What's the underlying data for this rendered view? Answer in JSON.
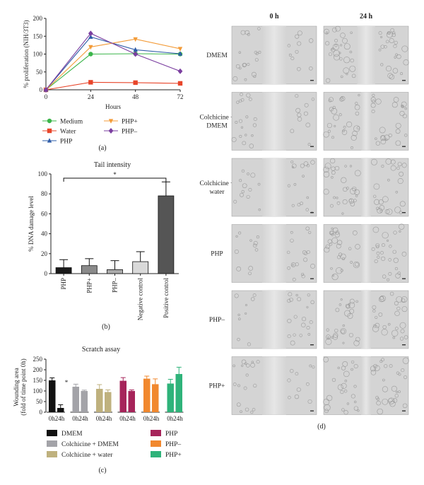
{
  "panel_a": {
    "label": "(a)",
    "chart_data": {
      "type": "line",
      "x": [
        0,
        24,
        48,
        72
      ],
      "xlabel": "Hours",
      "ylabel": "% proliferation (NIH/3T3)",
      "xlim": [
        0,
        72
      ],
      "ylim": [
        0,
        200
      ],
      "xticks": [
        "0",
        "24",
        "48",
        "72"
      ],
      "yticks": [
        "0",
        "50",
        "100",
        "150",
        "200"
      ],
      "legend_position": "bottom",
      "series": [
        {
          "name": "Medium",
          "color": "#3bb54a",
          "marker": "circle",
          "values": [
            0,
            100,
            101,
            100
          ]
        },
        {
          "name": "Water",
          "color": "#e8452a",
          "marker": "square",
          "values": [
            0,
            21,
            20,
            18
          ]
        },
        {
          "name": "PHP",
          "color": "#2e5ca8",
          "marker": "triangle-up",
          "values": [
            0,
            148,
            112,
            101
          ]
        },
        {
          "name": "PHP+",
          "color": "#f39b38",
          "marker": "triangle-down",
          "values": [
            0,
            120,
            142,
            115
          ]
        },
        {
          "name": "PHP–",
          "color": "#7b3fa0",
          "marker": "diamond",
          "values": [
            0,
            158,
            100,
            52
          ]
        }
      ]
    }
  },
  "panel_b": {
    "label": "(b)",
    "chart_data": {
      "type": "bar",
      "title": "Tail intensity",
      "ylabel": "% DNA damage level",
      "ylim": [
        0,
        100
      ],
      "yticks": [
        "0",
        "20",
        "40",
        "60",
        "80",
        "100"
      ],
      "categories": [
        "PHP",
        "PHP+",
        "PHP–",
        "Negative control",
        "Positive control"
      ],
      "values": [
        6,
        8,
        4,
        12,
        78
      ],
      "errors": [
        8,
        7,
        9,
        10,
        14
      ],
      "colors": [
        "#1a1a1a",
        "#8a8a8a",
        "#ababab",
        "#d9d9d9",
        "#555555"
      ],
      "significance": {
        "from": "PHP",
        "to": "Positive control",
        "label": "*"
      }
    }
  },
  "panel_c": {
    "label": "(c)",
    "chart_data": {
      "type": "bar",
      "title": "Scratch assay",
      "ylabel": "Wounding area\n(fold of time point 0h)",
      "ylim": [
        0,
        250
      ],
      "yticks": [
        "0",
        "50",
        "100",
        "150",
        "200",
        "250"
      ],
      "group_labels": [
        "0h24h",
        "0h24h",
        "0h24h",
        "0h24h",
        "0h24h",
        "0h24h"
      ],
      "series": [
        {
          "name": "DMEM",
          "color": "#111111",
          "values": [
            150,
            20
          ],
          "errors": [
            12,
            15
          ],
          "annotation": "*"
        },
        {
          "name": "Colchicine + DMEM",
          "color": "#a3a3a8",
          "values": [
            120,
            100
          ],
          "errors": [
            12,
            4
          ]
        },
        {
          "name": "Colchicine + water",
          "color": "#bfb17e",
          "values": [
            110,
            95
          ],
          "errors": [
            20,
            10
          ]
        },
        {
          "name": "PHP",
          "color": "#a6245a",
          "values": [
            148,
            100
          ],
          "errors": [
            15,
            5
          ]
        },
        {
          "name": "PHP–",
          "color": "#f1882e",
          "values": [
            158,
            132
          ],
          "errors": [
            12,
            25
          ]
        },
        {
          "name": "PHP+",
          "color": "#2fb37a",
          "values": [
            135,
            180
          ],
          "errors": [
            20,
            32
          ]
        }
      ]
    }
  },
  "panel_d": {
    "label": "(d)",
    "columns": [
      "0 h",
      "24 h"
    ],
    "rows": [
      "DMEM",
      "Colchicine +\nDMEM",
      "Colchicine +\nwater",
      "PHP",
      "PHP–",
      "PHP+"
    ]
  },
  "colors": {
    "axis": "#222222",
    "micrograph_bg": "#d4d4d4",
    "micrograph_gap": "#e6e6e6"
  }
}
